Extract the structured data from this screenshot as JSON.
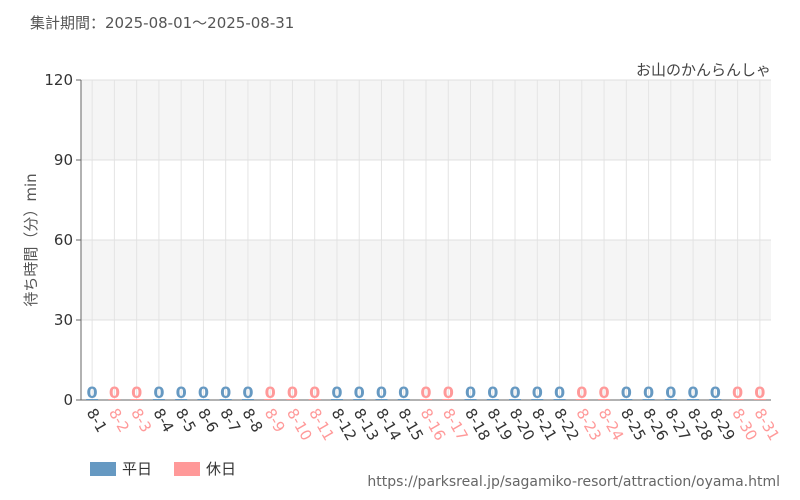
{
  "period": {
    "label": "集計期間：2025-08-01～2025-08-31"
  },
  "chart_data": {
    "type": "bar",
    "title": "お山のかんらんしゃ",
    "ylabel": "待ち時間（分）min",
    "xlabel": "",
    "ylim": [
      0,
      120
    ],
    "yticks": [
      0,
      30,
      60,
      90,
      120
    ],
    "grid": true,
    "categories": [
      "8-1",
      "8-2",
      "8-3",
      "8-4",
      "8-5",
      "8-6",
      "8-7",
      "8-8",
      "8-9",
      "8-10",
      "8-11",
      "8-12",
      "8-13",
      "8-14",
      "8-15",
      "8-16",
      "8-17",
      "8-18",
      "8-19",
      "8-20",
      "8-21",
      "8-22",
      "8-23",
      "8-24",
      "8-25",
      "8-26",
      "8-27",
      "8-28",
      "8-29",
      "8-30",
      "8-31"
    ],
    "values": [
      0,
      0,
      0,
      0,
      0,
      0,
      0,
      0,
      0,
      0,
      0,
      0,
      0,
      0,
      0,
      0,
      0,
      0,
      0,
      0,
      0,
      0,
      0,
      0,
      0,
      0,
      0,
      0,
      0,
      0,
      0
    ],
    "day_type": [
      "weekday",
      "holiday",
      "holiday",
      "weekday",
      "weekday",
      "weekday",
      "weekday",
      "weekday",
      "holiday",
      "holiday",
      "holiday",
      "weekday",
      "weekday",
      "weekday",
      "weekday",
      "holiday",
      "holiday",
      "weekday",
      "weekday",
      "weekday",
      "weekday",
      "weekday",
      "holiday",
      "holiday",
      "weekday",
      "weekday",
      "weekday",
      "weekday",
      "weekday",
      "holiday",
      "holiday"
    ],
    "series": [
      {
        "name": "平日",
        "key": "weekday",
        "color": "#6699c2"
      },
      {
        "name": "休日",
        "key": "holiday",
        "color": "#ff9999"
      }
    ],
    "legend_position": "bottom-left"
  },
  "footer": {
    "source": "https://parksreal.jp/sagamiko-resort/attraction/oyama.html"
  }
}
